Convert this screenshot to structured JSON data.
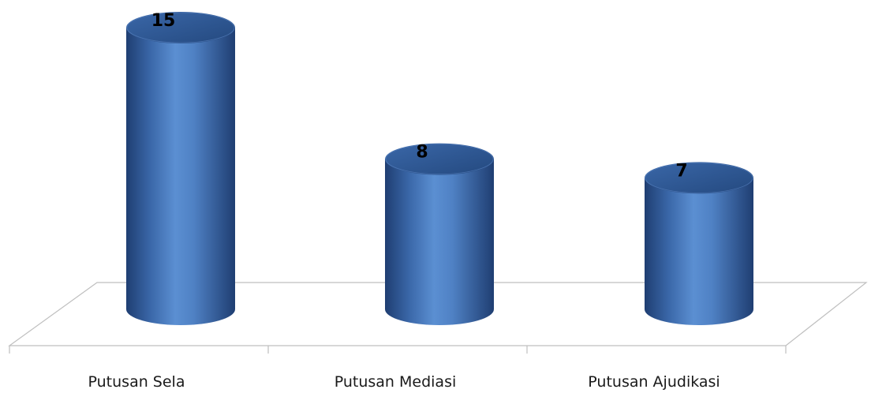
{
  "chart_data": {
    "type": "bar",
    "style": "3d-cylinder",
    "categories": [
      "Putusan Sela",
      "Putusan Mediasi",
      "Putusan Ajudikasi"
    ],
    "values": [
      15,
      8,
      7
    ],
    "data_labels": [
      "15",
      "8",
      "7"
    ],
    "title": "",
    "xlabel": "",
    "ylabel": "",
    "ylim": [
      0,
      15
    ],
    "grid": false,
    "legend": "none",
    "colors": {
      "bar_mid": "#4f81bd",
      "bar_dark": "#1f3e72",
      "bar_top": "#2f5a94",
      "floor_line": "#bfbfbf"
    }
  }
}
